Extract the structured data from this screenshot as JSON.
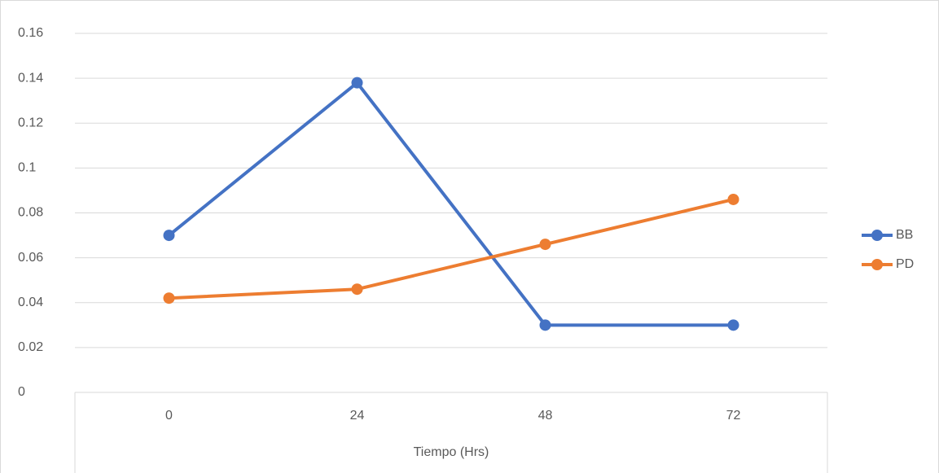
{
  "chart_data": {
    "type": "line",
    "x_label": "Tiempo (Hrs)",
    "categories": [
      "0",
      "24",
      "48",
      "72"
    ],
    "series": [
      {
        "name": "BB",
        "color": "#4472c4",
        "values": [
          0.07,
          0.138,
          0.03,
          0.03
        ]
      },
      {
        "name": "PD",
        "color": "#ed7d31",
        "values": [
          0.042,
          0.046,
          0.066,
          0.086
        ]
      }
    ],
    "ylim": [
      0,
      0.16
    ],
    "yticks": [
      0,
      0.02,
      0.04,
      0.06,
      0.08,
      0.1,
      0.12,
      0.14,
      0.16
    ],
    "grid": true,
    "legend": "right"
  }
}
